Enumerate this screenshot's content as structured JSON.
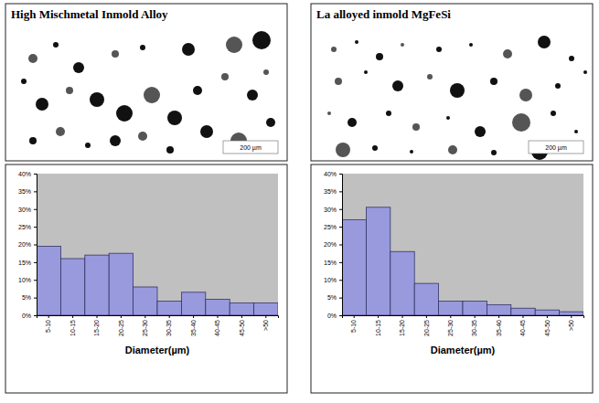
{
  "chart_data": [
    {
      "type": "bar",
      "title": "High Mischmetal Inmold Alloy",
      "scale_label": "200 µm",
      "categories": [
        "5-10",
        "10-15",
        "15-20",
        "20-25",
        "25-30",
        "30-35",
        "35-40",
        "40-45",
        "45-50",
        ">50"
      ],
      "values": [
        19.5,
        16,
        17,
        17.5,
        8,
        4,
        6.5,
        4.5,
        3.5,
        3.5
      ],
      "color": "#9999dd",
      "x_label": "Diameter(µm)",
      "ylim": [
        0,
        40
      ],
      "yticks": [
        {
          "value": 0,
          "label": "0%"
        },
        {
          "value": 5,
          "label": "5%"
        },
        {
          "value": 10,
          "label": "10%"
        },
        {
          "value": 15,
          "label": "15%"
        },
        {
          "value": 20,
          "label": "20%"
        },
        {
          "value": 25,
          "label": "25%"
        },
        {
          "value": 30,
          "label": "30%"
        },
        {
          "value": 35,
          "label": "35%"
        },
        {
          "value": 40,
          "label": "40%"
        }
      ],
      "grid": false
    },
    {
      "type": "bar",
      "title": "La alloyed inmold MgFeSi",
      "scale_label": "200 µm",
      "categories": [
        "5-10",
        "10-15",
        "15-20",
        "20-25",
        "25-30",
        "30-35",
        "35-40",
        "40-45",
        "45-50",
        ">50"
      ],
      "values": [
        27,
        30.5,
        18,
        9,
        4,
        4,
        3,
        2,
        1.5,
        1
      ],
      "color": "#9999dd",
      "x_label": "Diameter(µm)",
      "ylim": [
        0,
        40
      ],
      "yticks": [
        {
          "value": 0,
          "label": "0%"
        },
        {
          "value": 5,
          "label": "5%"
        },
        {
          "value": 10,
          "label": "10%"
        },
        {
          "value": 15,
          "label": "15%"
        },
        {
          "value": 20,
          "label": "20%"
        },
        {
          "value": 25,
          "label": "25%"
        },
        {
          "value": 30,
          "label": "30%"
        },
        {
          "value": 35,
          "label": "35%"
        },
        {
          "value": 40,
          "label": "40%"
        }
      ],
      "grid": false
    }
  ]
}
